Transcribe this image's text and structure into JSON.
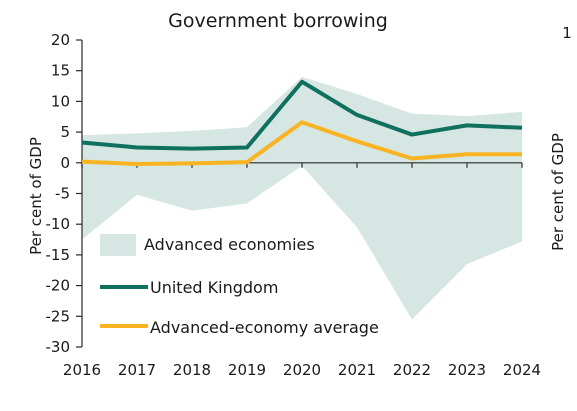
{
  "chart_data": {
    "type": "area",
    "title": "Government borrowing",
    "ylabel": "Per cent of GDP",
    "ylabel_right": "Per cent of GDP",
    "right_axis_top_label": "1",
    "x": [
      "2016",
      "2017",
      "2018",
      "2019",
      "2020",
      "2021",
      "2022",
      "2023",
      "2024"
    ],
    "yticks": [
      20,
      15,
      10,
      5,
      0,
      -5,
      -10,
      -15,
      -20,
      -25,
      -30
    ],
    "ylim": [
      -30,
      20
    ],
    "grid": false,
    "legend_position": "bottom-left",
    "band": {
      "name": "Advanced economies",
      "upper": [
        4.5,
        4.8,
        5.2,
        5.8,
        14.0,
        11.2,
        8.0,
        7.6,
        8.3
      ],
      "lower": [
        -12.5,
        -5.2,
        -7.8,
        -6.6,
        -0.5,
        -10.5,
        -25.5,
        -16.5,
        -12.8
      ]
    },
    "series": [
      {
        "name": "United Kingdom",
        "values": [
          3.3,
          2.5,
          2.3,
          2.5,
          13.2,
          7.8,
          4.6,
          6.1,
          5.7
        ]
      },
      {
        "name": "Advanced-economy average",
        "values": [
          0.2,
          -0.2,
          -0.1,
          0.1,
          6.6,
          3.5,
          0.7,
          1.4,
          1.4
        ]
      }
    ],
    "colors": {
      "band": "#d6e6e2",
      "uk": "#10705f",
      "average": "#f8b322",
      "axis": "#2a2a2a"
    }
  }
}
